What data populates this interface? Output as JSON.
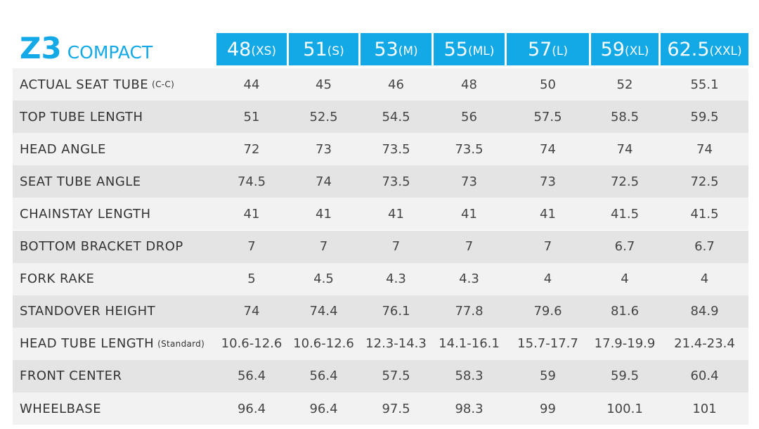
{
  "title": {
    "model": "Z3",
    "variant": "COMPACT"
  },
  "table": {
    "columns": [
      {
        "size": "48",
        "label": "(XS)"
      },
      {
        "size": "51",
        "label": "(S)"
      },
      {
        "size": "53",
        "label": "(M)"
      },
      {
        "size": "55",
        "label": "(ML)"
      },
      {
        "size": "57",
        "label": "(L)"
      },
      {
        "size": "59",
        "label": "(XL)"
      },
      {
        "size": "62.5",
        "label": "(XXL)"
      }
    ],
    "rows": [
      {
        "label": "ACTUAL SEAT TUBE",
        "note": "(C-C)",
        "values": [
          "44",
          "45",
          "46",
          "48",
          "50",
          "52",
          "55.1"
        ]
      },
      {
        "label": "TOP TUBE LENGTH",
        "values": [
          "51",
          "52.5",
          "54.5",
          "56",
          "57.5",
          "58.5",
          "59.5"
        ]
      },
      {
        "label": "HEAD ANGLE",
        "values": [
          "72",
          "73",
          "73.5",
          "73.5",
          "74",
          "74",
          "74"
        ]
      },
      {
        "label": "SEAT TUBE ANGLE",
        "values": [
          "74.5",
          "74",
          "73.5",
          "73",
          "73",
          "72.5",
          "72.5"
        ]
      },
      {
        "label": "CHAINSTAY LENGTH",
        "values": [
          "41",
          "41",
          "41",
          "41",
          "41",
          "41.5",
          "41.5"
        ]
      },
      {
        "label": "BOTTOM BRACKET DROP",
        "values": [
          "7",
          "7",
          "7",
          "7",
          "7",
          "6.7",
          "6.7"
        ]
      },
      {
        "label": "FORK RAKE",
        "values": [
          "5",
          "4.5",
          "4.3",
          "4.3",
          "4",
          "4",
          "4"
        ]
      },
      {
        "label": "STANDOVER HEIGHT",
        "values": [
          "74",
          "74.4",
          "76.1",
          "77.8",
          "79.6",
          "81.6",
          "84.9"
        ]
      },
      {
        "label": "HEAD TUBE LENGTH",
        "note": "(Standard)",
        "values": [
          "10.6-12.6",
          "10.6-12.6",
          "12.3-14.3",
          "14.1-16.1",
          "15.7-17.7",
          "17.9-19.9",
          "21.4-23.4"
        ]
      },
      {
        "label": "FRONT CENTER",
        "values": [
          "56.4",
          "56.4",
          "57.5",
          "58.3",
          "59",
          "59.5",
          "60.4"
        ]
      },
      {
        "label": "WHEELBASE",
        "values": [
          "96.4",
          "96.4",
          "97.5",
          "98.3",
          "99",
          "100.1",
          "101"
        ]
      }
    ]
  }
}
